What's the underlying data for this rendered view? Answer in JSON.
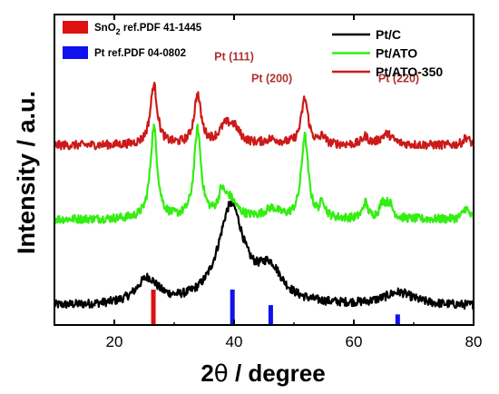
{
  "chart_data": {
    "type": "line",
    "xlabel_prefix": "2",
    "xlabel_symbol": "θ",
    "xlabel_suffix": " / degree",
    "ylabel": "Intensity / a.u.",
    "xlim": [
      10,
      80
    ],
    "xticks": [
      20,
      40,
      60,
      80
    ],
    "y_ticks_shown": false,
    "legend_position": "top-right",
    "series": [
      {
        "name": "Pt/C",
        "color": "#000000",
        "offset": 0,
        "baseline": [
          0.0
        ],
        "peaks": [
          {
            "x": 25.5,
            "h": 1.6,
            "w": 2.2
          },
          {
            "x": 39.5,
            "h": 6.2,
            "w": 2.6
          },
          {
            "x": 46.0,
            "h": 2.0,
            "w": 2.5
          },
          {
            "x": 67.5,
            "h": 0.8,
            "w": 3.0
          }
        ]
      },
      {
        "name": "Pt/ATO",
        "color": "#33ee11",
        "offset": 5.5,
        "baseline": [
          0.0
        ],
        "peaks": [
          {
            "x": 26.6,
            "h": 5.8,
            "w": 0.7
          },
          {
            "x": 33.9,
            "h": 5.6,
            "w": 0.7
          },
          {
            "x": 37.9,
            "h": 1.2,
            "w": 0.6
          },
          {
            "x": 39.2,
            "h": 1.2,
            "w": 1.4
          },
          {
            "x": 46.3,
            "h": 0.6,
            "w": 1.5
          },
          {
            "x": 51.8,
            "h": 5.2,
            "w": 0.7
          },
          {
            "x": 54.8,
            "h": 1.0,
            "w": 0.5
          },
          {
            "x": 61.9,
            "h": 1.0,
            "w": 0.5
          },
          {
            "x": 64.8,
            "h": 0.9,
            "w": 0.6
          },
          {
            "x": 65.9,
            "h": 0.9,
            "w": 0.7
          },
          {
            "x": 78.7,
            "h": 0.7,
            "w": 0.6
          }
        ]
      },
      {
        "name": "Pt/ATO-350",
        "color": "#cc1a1a",
        "offset": 10.2,
        "baseline": [
          0.0
        ],
        "peaks": [
          {
            "x": 26.6,
            "h": 3.8,
            "w": 0.7
          },
          {
            "x": 33.9,
            "h": 3.1,
            "w": 0.7
          },
          {
            "x": 38.5,
            "h": 1.0,
            "w": 1.2
          },
          {
            "x": 40.0,
            "h": 0.9,
            "w": 1.2
          },
          {
            "x": 46.3,
            "h": 0.3,
            "w": 1.5
          },
          {
            "x": 51.8,
            "h": 2.9,
            "w": 0.7
          },
          {
            "x": 54.8,
            "h": 0.5,
            "w": 0.5
          },
          {
            "x": 61.9,
            "h": 0.5,
            "w": 0.6
          },
          {
            "x": 65.5,
            "h": 0.7,
            "w": 1.2
          },
          {
            "x": 78.8,
            "h": 0.5,
            "w": 0.6
          }
        ]
      }
    ],
    "reference_patterns": [
      {
        "label_main": "SnO",
        "label_sub": "2",
        "label_rest": " ref.PDF 41-1445",
        "color": "#dd1111",
        "lines": [
          {
            "x": 26.6,
            "h": 1.0
          }
        ]
      },
      {
        "label_main": "Pt ref.PDF 04-0802",
        "label_sub": "",
        "label_rest": "",
        "color": "#1111ee",
        "lines": [
          {
            "x": 39.8,
            "h": 1.0
          },
          {
            "x": 46.2,
            "h": 0.55
          },
          {
            "x": 67.4,
            "h": 0.28
          }
        ]
      }
    ],
    "annotations": [
      {
        "text": "Pt (111)",
        "x": 40.0,
        "level": 15.6
      },
      {
        "text": "Pt (200)",
        "x": 46.3,
        "level": 14.2
      },
      {
        "text": "Pt (220)",
        "x": 67.5,
        "level": 14.2
      }
    ],
    "annotation_color": "#b03030",
    "data_y_range": [
      -1.2,
      18.5
    ]
  }
}
